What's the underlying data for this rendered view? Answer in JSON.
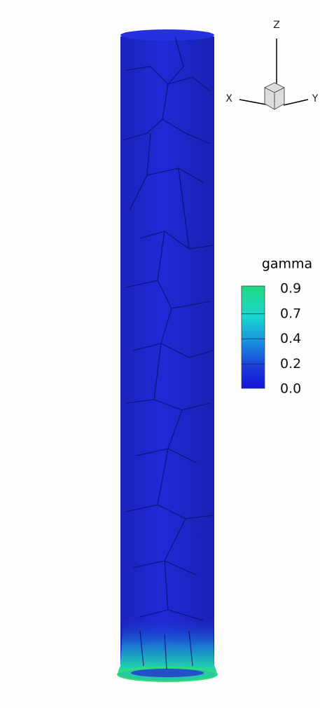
{
  "legend": {
    "title": "gamma",
    "levels": [
      "0.9",
      "0.7",
      "0.4",
      "0.2",
      "0.0"
    ]
  },
  "axes": {
    "z": "Z",
    "x": "X",
    "y": "Y"
  }
}
